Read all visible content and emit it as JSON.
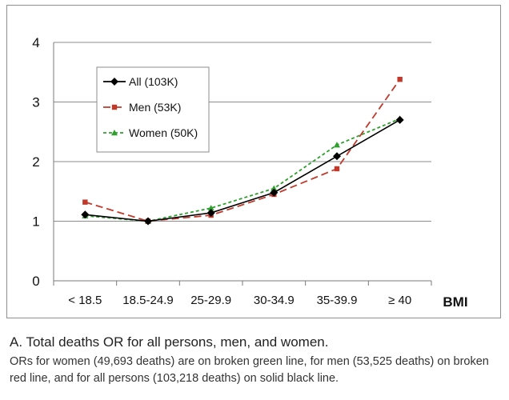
{
  "chart_data": {
    "type": "line",
    "categories": [
      "< 18.5",
      "18.5-24.9",
      "25-29.9",
      "30-34.9",
      "35-39.9",
      "≥ 40"
    ],
    "xlabel": "BMI",
    "ylabel": "",
    "ylim": [
      0,
      4
    ],
    "yticks": [
      "0",
      "1",
      "2",
      "3",
      "4"
    ],
    "grid": true,
    "legend_position": "top-left",
    "series": [
      {
        "name": "All (103K)",
        "color": "#000000",
        "marker": "diamond",
        "dash": "solid",
        "values": [
          1.11,
          1.0,
          1.14,
          1.48,
          2.09,
          2.7
        ]
      },
      {
        "name": "Men (53K)",
        "color": "#c0392b",
        "marker": "square",
        "dash": "long-dash",
        "values": [
          1.32,
          1.0,
          1.1,
          1.45,
          1.88,
          3.38
        ]
      },
      {
        "name": "Women (50K)",
        "color": "#2ea02e",
        "marker": "triangle",
        "dash": "short-dash",
        "values": [
          1.09,
          1.0,
          1.22,
          1.55,
          2.28,
          2.72
        ]
      }
    ]
  },
  "caption": {
    "title": "A. Total deaths OR for all persons, men, and women.",
    "note": "ORs for women (49,693 deaths) are on broken green line, for men (53,525 deaths) on broken red line, and for all persons (103,218 deaths) on solid black line."
  }
}
